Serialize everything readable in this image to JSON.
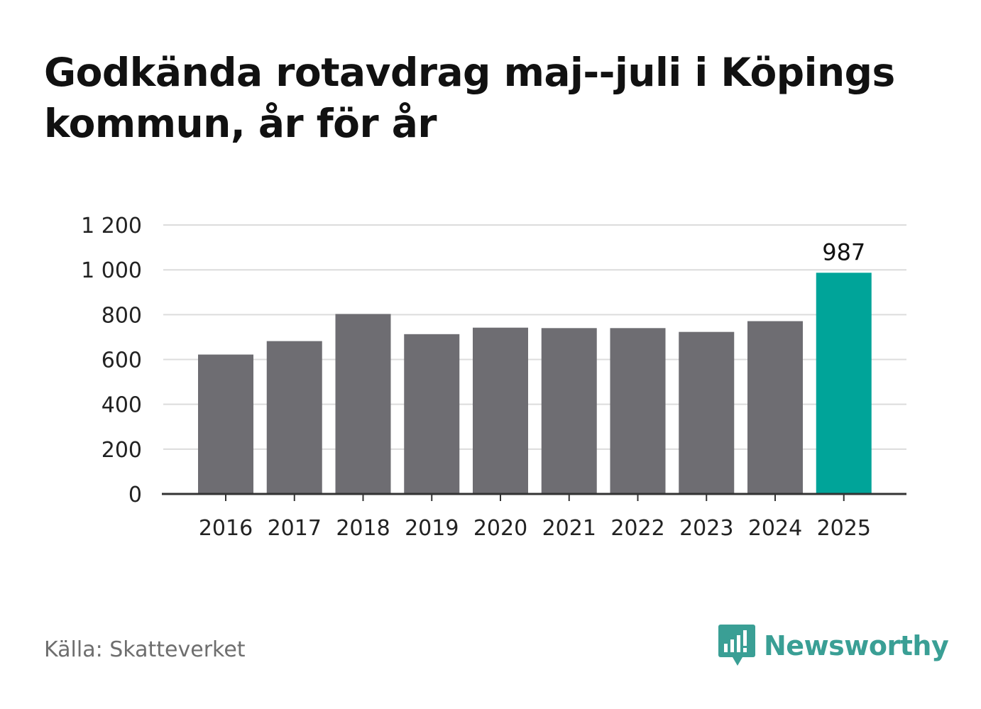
{
  "title": "Godkända rotavdrag maj--juli i Köpings kommun, år för år",
  "source": "Källa: Skatteverket",
  "brand": {
    "name": "Newsworthy",
    "icon": "newsworthy-logo-icon",
    "color": "#3a9f95"
  },
  "chart_data": {
    "type": "bar",
    "categories": [
      "2016",
      "2017",
      "2018",
      "2019",
      "2020",
      "2021",
      "2022",
      "2023",
      "2024",
      "2025"
    ],
    "values": [
      622,
      682,
      803,
      713,
      742,
      740,
      740,
      723,
      771,
      987
    ],
    "highlight_index": 9,
    "data_labels": [
      {
        "index": 9,
        "text": "987"
      }
    ],
    "title": "Godkända rotavdrag maj--juli i Köpings kommun, år för år",
    "xlabel": "",
    "ylabel": "",
    "ylim": [
      0,
      1200
    ],
    "yticks": [
      0,
      200,
      400,
      600,
      800,
      1000,
      1200
    ],
    "ytick_labels": [
      "0",
      "200",
      "400",
      "600",
      "800",
      "1 000",
      "1 200"
    ],
    "grid": true,
    "colors": {
      "bar": "#6e6d72",
      "highlight": "#00a499",
      "grid": "#dcdcdc",
      "axis": "#333333"
    }
  }
}
